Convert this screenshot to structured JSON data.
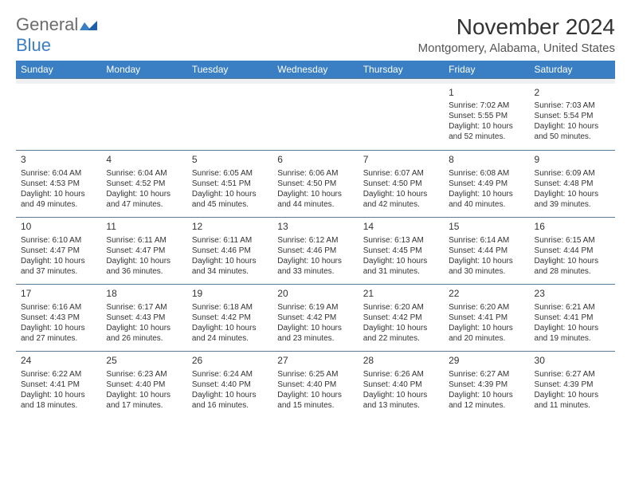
{
  "logo": {
    "general": "General",
    "blue": "Blue"
  },
  "title": "November 2024",
  "location": "Montgomery, Alabama, United States",
  "colors": {
    "header_bg": "#3a7fc4",
    "header_text": "#ffffff",
    "gap_bg": "#eef0f2",
    "border": "#5a7a9a",
    "text": "#333333",
    "logo_gray": "#6b6b6b",
    "logo_blue": "#3a7fc4",
    "page_bg": "#ffffff"
  },
  "typography": {
    "title_size": 28,
    "location_size": 15,
    "header_size": 12,
    "cell_size": 10,
    "daynum_size": 12
  },
  "day_headers": [
    "Sunday",
    "Monday",
    "Tuesday",
    "Wednesday",
    "Thursday",
    "Friday",
    "Saturday"
  ],
  "weeks": [
    [
      null,
      null,
      null,
      null,
      null,
      {
        "n": "1",
        "sunrise": "Sunrise: 7:02 AM",
        "sunset": "Sunset: 5:55 PM",
        "daylight": "Daylight: 10 hours and 52 minutes."
      },
      {
        "n": "2",
        "sunrise": "Sunrise: 7:03 AM",
        "sunset": "Sunset: 5:54 PM",
        "daylight": "Daylight: 10 hours and 50 minutes."
      }
    ],
    [
      {
        "n": "3",
        "sunrise": "Sunrise: 6:04 AM",
        "sunset": "Sunset: 4:53 PM",
        "daylight": "Daylight: 10 hours and 49 minutes."
      },
      {
        "n": "4",
        "sunrise": "Sunrise: 6:04 AM",
        "sunset": "Sunset: 4:52 PM",
        "daylight": "Daylight: 10 hours and 47 minutes."
      },
      {
        "n": "5",
        "sunrise": "Sunrise: 6:05 AM",
        "sunset": "Sunset: 4:51 PM",
        "daylight": "Daylight: 10 hours and 45 minutes."
      },
      {
        "n": "6",
        "sunrise": "Sunrise: 6:06 AM",
        "sunset": "Sunset: 4:50 PM",
        "daylight": "Daylight: 10 hours and 44 minutes."
      },
      {
        "n": "7",
        "sunrise": "Sunrise: 6:07 AM",
        "sunset": "Sunset: 4:50 PM",
        "daylight": "Daylight: 10 hours and 42 minutes."
      },
      {
        "n": "8",
        "sunrise": "Sunrise: 6:08 AM",
        "sunset": "Sunset: 4:49 PM",
        "daylight": "Daylight: 10 hours and 40 minutes."
      },
      {
        "n": "9",
        "sunrise": "Sunrise: 6:09 AM",
        "sunset": "Sunset: 4:48 PM",
        "daylight": "Daylight: 10 hours and 39 minutes."
      }
    ],
    [
      {
        "n": "10",
        "sunrise": "Sunrise: 6:10 AM",
        "sunset": "Sunset: 4:47 PM",
        "daylight": "Daylight: 10 hours and 37 minutes."
      },
      {
        "n": "11",
        "sunrise": "Sunrise: 6:11 AM",
        "sunset": "Sunset: 4:47 PM",
        "daylight": "Daylight: 10 hours and 36 minutes."
      },
      {
        "n": "12",
        "sunrise": "Sunrise: 6:11 AM",
        "sunset": "Sunset: 4:46 PM",
        "daylight": "Daylight: 10 hours and 34 minutes."
      },
      {
        "n": "13",
        "sunrise": "Sunrise: 6:12 AM",
        "sunset": "Sunset: 4:46 PM",
        "daylight": "Daylight: 10 hours and 33 minutes."
      },
      {
        "n": "14",
        "sunrise": "Sunrise: 6:13 AM",
        "sunset": "Sunset: 4:45 PM",
        "daylight": "Daylight: 10 hours and 31 minutes."
      },
      {
        "n": "15",
        "sunrise": "Sunrise: 6:14 AM",
        "sunset": "Sunset: 4:44 PM",
        "daylight": "Daylight: 10 hours and 30 minutes."
      },
      {
        "n": "16",
        "sunrise": "Sunrise: 6:15 AM",
        "sunset": "Sunset: 4:44 PM",
        "daylight": "Daylight: 10 hours and 28 minutes."
      }
    ],
    [
      {
        "n": "17",
        "sunrise": "Sunrise: 6:16 AM",
        "sunset": "Sunset: 4:43 PM",
        "daylight": "Daylight: 10 hours and 27 minutes."
      },
      {
        "n": "18",
        "sunrise": "Sunrise: 6:17 AM",
        "sunset": "Sunset: 4:43 PM",
        "daylight": "Daylight: 10 hours and 26 minutes."
      },
      {
        "n": "19",
        "sunrise": "Sunrise: 6:18 AM",
        "sunset": "Sunset: 4:42 PM",
        "daylight": "Daylight: 10 hours and 24 minutes."
      },
      {
        "n": "20",
        "sunrise": "Sunrise: 6:19 AM",
        "sunset": "Sunset: 4:42 PM",
        "daylight": "Daylight: 10 hours and 23 minutes."
      },
      {
        "n": "21",
        "sunrise": "Sunrise: 6:20 AM",
        "sunset": "Sunset: 4:42 PM",
        "daylight": "Daylight: 10 hours and 22 minutes."
      },
      {
        "n": "22",
        "sunrise": "Sunrise: 6:20 AM",
        "sunset": "Sunset: 4:41 PM",
        "daylight": "Daylight: 10 hours and 20 minutes."
      },
      {
        "n": "23",
        "sunrise": "Sunrise: 6:21 AM",
        "sunset": "Sunset: 4:41 PM",
        "daylight": "Daylight: 10 hours and 19 minutes."
      }
    ],
    [
      {
        "n": "24",
        "sunrise": "Sunrise: 6:22 AM",
        "sunset": "Sunset: 4:41 PM",
        "daylight": "Daylight: 10 hours and 18 minutes."
      },
      {
        "n": "25",
        "sunrise": "Sunrise: 6:23 AM",
        "sunset": "Sunset: 4:40 PM",
        "daylight": "Daylight: 10 hours and 17 minutes."
      },
      {
        "n": "26",
        "sunrise": "Sunrise: 6:24 AM",
        "sunset": "Sunset: 4:40 PM",
        "daylight": "Daylight: 10 hours and 16 minutes."
      },
      {
        "n": "27",
        "sunrise": "Sunrise: 6:25 AM",
        "sunset": "Sunset: 4:40 PM",
        "daylight": "Daylight: 10 hours and 15 minutes."
      },
      {
        "n": "28",
        "sunrise": "Sunrise: 6:26 AM",
        "sunset": "Sunset: 4:40 PM",
        "daylight": "Daylight: 10 hours and 13 minutes."
      },
      {
        "n": "29",
        "sunrise": "Sunrise: 6:27 AM",
        "sunset": "Sunset: 4:39 PM",
        "daylight": "Daylight: 10 hours and 12 minutes."
      },
      {
        "n": "30",
        "sunrise": "Sunrise: 6:27 AM",
        "sunset": "Sunset: 4:39 PM",
        "daylight": "Daylight: 10 hours and 11 minutes."
      }
    ]
  ]
}
